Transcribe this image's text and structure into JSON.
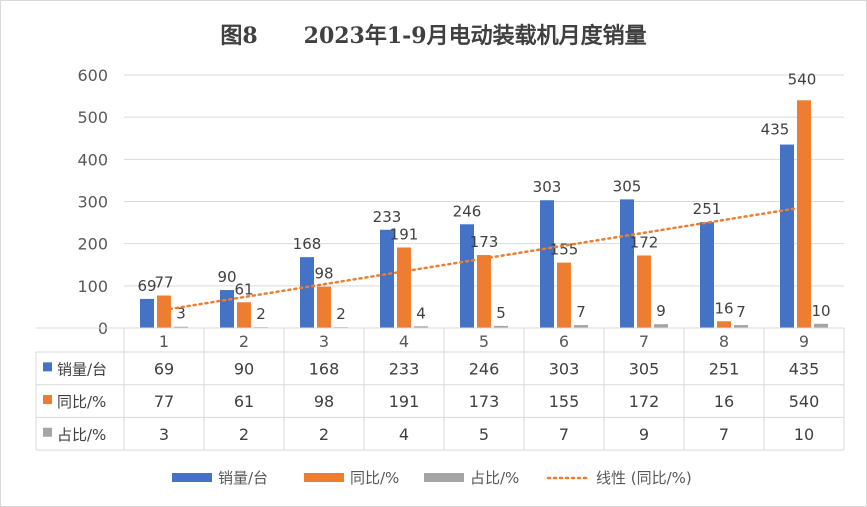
{
  "chart_data": {
    "type": "bar",
    "title": "图8      2023年1-9月电动装载机月度销量",
    "categories": [
      "1",
      "2",
      "3",
      "4",
      "5",
      "6",
      "7",
      "8",
      "9"
    ],
    "ylim": [
      0,
      600
    ],
    "yticks": [
      0,
      100,
      200,
      300,
      400,
      500,
      600
    ],
    "grid": true,
    "legend_position": "bottom",
    "has_data_table": true,
    "series": [
      {
        "name": "销量/台",
        "color": "#4472c4",
        "values": [
          69,
          90,
          168,
          233,
          246,
          303,
          305,
          251,
          435
        ]
      },
      {
        "name": "同比/%",
        "color": "#ed7d31",
        "values": [
          77,
          61,
          98,
          191,
          173,
          155,
          172,
          16,
          540
        ]
      },
      {
        "name": "占比/%",
        "color": "#a5a5a5",
        "values": [
          3,
          2,
          2,
          4,
          5,
          7,
          9,
          7,
          10
        ]
      }
    ],
    "trendline": {
      "name": "线性 (同比/%)",
      "of_series": "同比/%",
      "type": "linear",
      "color": "#ed7d31",
      "style": "dotted"
    }
  }
}
